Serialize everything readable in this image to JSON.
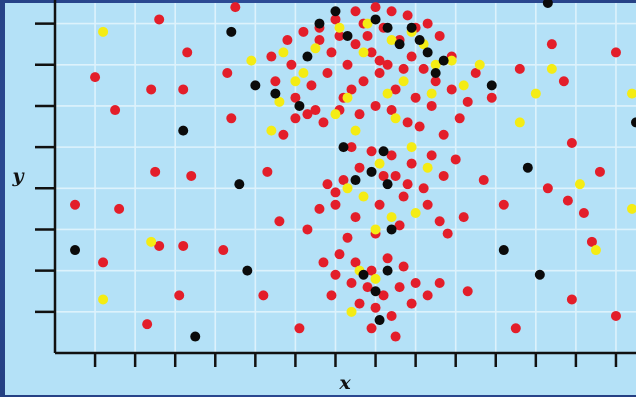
{
  "chart_data": {
    "type": "scatter",
    "title": "",
    "xlabel": "x",
    "ylabel": "y",
    "xlim": [
      0,
      14.5
    ],
    "ylim": [
      0,
      8.5
    ],
    "grid": true,
    "legend": "none",
    "colors": {
      "red": "#e31e2a",
      "yellow": "#f4ec14",
      "black": "#0b0b0b",
      "plot_background": "#b4e1f7",
      "grid": "#ddf2fc",
      "axis": "#111111"
    },
    "series": [
      {
        "values": [
          [
            0.5,
            3.6
          ],
          [
            2.6,
            8.1
          ],
          [
            3.3,
            7.3
          ],
          [
            4.3,
            6.8
          ],
          [
            4.5,
            8.4
          ],
          [
            1.0,
            6.7
          ],
          [
            1.5,
            5.9
          ],
          [
            2.4,
            6.4
          ],
          [
            3.2,
            6.4
          ],
          [
            2.5,
            4.4
          ],
          [
            3.4,
            4.3
          ],
          [
            4.4,
            5.7
          ],
          [
            1.6,
            3.5
          ],
          [
            2.6,
            2.6
          ],
          [
            1.2,
            2.2
          ],
          [
            3.2,
            2.6
          ],
          [
            4.2,
            2.5
          ],
          [
            3.1,
            1.4
          ],
          [
            2.3,
            0.7
          ],
          [
            5.2,
            1.4
          ],
          [
            5.3,
            4.4
          ],
          [
            5.6,
            3.2
          ],
          [
            6.3,
            3.0
          ],
          [
            6.6,
            3.5
          ],
          [
            7.0,
            3.6
          ],
          [
            5.5,
            6.6
          ],
          [
            5.9,
            7.0
          ],
          [
            6.4,
            6.5
          ],
          [
            6.8,
            6.8
          ],
          [
            7.2,
            6.2
          ],
          [
            5.7,
            5.3
          ],
          [
            6.0,
            5.7
          ],
          [
            6.3,
            5.8
          ],
          [
            6.7,
            5.6
          ],
          [
            7.1,
            5.9
          ],
          [
            5.8,
            7.6
          ],
          [
            6.2,
            7.8
          ],
          [
            6.6,
            7.9
          ],
          [
            7.1,
            7.7
          ],
          [
            7.5,
            7.5
          ],
          [
            7.8,
            7.7
          ],
          [
            8.2,
            7.9
          ],
          [
            8.6,
            7.6
          ],
          [
            8.9,
            7.2
          ],
          [
            9.2,
            6.9
          ],
          [
            9.5,
            6.6
          ],
          [
            9.0,
            6.2
          ],
          [
            8.5,
            6.4
          ],
          [
            8.1,
            6.8
          ],
          [
            7.7,
            6.6
          ],
          [
            6.9,
            7.3
          ],
          [
            7.3,
            7.0
          ],
          [
            7.9,
            7.3
          ],
          [
            8.3,
            7.0
          ],
          [
            8.7,
            6.9
          ],
          [
            9.4,
            6.0
          ],
          [
            9.9,
            6.4
          ],
          [
            10.3,
            6.1
          ],
          [
            10.1,
            5.7
          ],
          [
            9.7,
            5.3
          ],
          [
            6.0,
            6.2
          ],
          [
            6.5,
            5.9
          ],
          [
            7.4,
            6.4
          ],
          [
            7.6,
            5.8
          ],
          [
            8.0,
            6.0
          ],
          [
            8.4,
            5.9
          ],
          [
            8.8,
            5.6
          ],
          [
            9.1,
            5.5
          ],
          [
            7.0,
            8.1
          ],
          [
            7.5,
            8.3
          ],
          [
            8.0,
            8.4
          ],
          [
            8.4,
            8.3
          ],
          [
            8.8,
            8.2
          ],
          [
            9.3,
            8.0
          ],
          [
            9.6,
            7.7
          ],
          [
            9.9,
            7.2
          ],
          [
            10.5,
            6.8
          ],
          [
            10.9,
            6.2
          ],
          [
            11.6,
            6.9
          ],
          [
            12.4,
            7.5
          ],
          [
            12.7,
            6.6
          ],
          [
            12.9,
            5.1
          ],
          [
            12.3,
            4.0
          ],
          [
            13.6,
            4.4
          ],
          [
            14.0,
            7.3
          ],
          [
            13.4,
            2.7
          ],
          [
            12.8,
            3.7
          ],
          [
            11.2,
            3.6
          ],
          [
            10.7,
            4.2
          ],
          [
            10.0,
            4.7
          ],
          [
            7.4,
            5.0
          ],
          [
            7.9,
            4.9
          ],
          [
            8.4,
            4.8
          ],
          [
            8.9,
            4.6
          ],
          [
            9.4,
            4.8
          ],
          [
            9.7,
            4.3
          ],
          [
            9.2,
            4.0
          ],
          [
            8.7,
            3.8
          ],
          [
            8.1,
            3.6
          ],
          [
            7.5,
            3.3
          ],
          [
            7.0,
            3.9
          ],
          [
            7.6,
            4.5
          ],
          [
            8.2,
            4.3
          ],
          [
            8.8,
            4.1
          ],
          [
            9.3,
            3.6
          ],
          [
            9.6,
            3.2
          ],
          [
            8.6,
            3.1
          ],
          [
            8.0,
            2.9
          ],
          [
            7.3,
            2.8
          ],
          [
            9.8,
            2.9
          ],
          [
            10.2,
            3.3
          ],
          [
            7.1,
            2.4
          ],
          [
            7.5,
            2.2
          ],
          [
            7.9,
            2.0
          ],
          [
            8.3,
            2.3
          ],
          [
            8.7,
            2.1
          ],
          [
            9.0,
            1.7
          ],
          [
            8.6,
            1.6
          ],
          [
            8.2,
            1.4
          ],
          [
            7.8,
            1.6
          ],
          [
            7.4,
            1.7
          ],
          [
            7.0,
            1.9
          ],
          [
            7.6,
            1.2
          ],
          [
            8.0,
            1.1
          ],
          [
            8.4,
            0.9
          ],
          [
            8.9,
            1.2
          ],
          [
            9.3,
            1.4
          ],
          [
            9.6,
            1.7
          ],
          [
            6.9,
            1.4
          ],
          [
            6.7,
            2.2
          ],
          [
            7.9,
            0.6
          ],
          [
            8.5,
            0.4
          ],
          [
            10.3,
            1.5
          ],
          [
            11.5,
            0.6
          ],
          [
            12.9,
            1.3
          ],
          [
            14.0,
            0.9
          ],
          [
            13.2,
            3.4
          ],
          [
            6.1,
            0.6
          ],
          [
            9.0,
            7.9
          ],
          [
            8.1,
            7.1
          ],
          [
            7.2,
            4.2
          ],
          [
            8.5,
            4.3
          ],
          [
            6.8,
            4.1
          ],
          [
            6.6,
            7.6
          ],
          [
            5.4,
            7.2
          ],
          [
            7.7,
            8.0
          ]
        ]
      },
      {
        "values": [
          [
            1.2,
            7.8
          ],
          [
            4.9,
            7.1
          ],
          [
            5.6,
            6.1
          ],
          [
            6.0,
            6.6
          ],
          [
            6.5,
            7.4
          ],
          [
            7.1,
            7.9
          ],
          [
            7.7,
            7.3
          ],
          [
            8.4,
            7.6
          ],
          [
            9.2,
            7.5
          ],
          [
            9.5,
            7.0
          ],
          [
            9.9,
            7.1
          ],
          [
            10.2,
            6.5
          ],
          [
            9.4,
            6.3
          ],
          [
            7.0,
            5.8
          ],
          [
            7.5,
            5.4
          ],
          [
            8.5,
            5.7
          ],
          [
            8.9,
            5.0
          ],
          [
            9.3,
            4.5
          ],
          [
            5.4,
            5.4
          ],
          [
            8.3,
            6.3
          ],
          [
            7.3,
            4.0
          ],
          [
            8.1,
            4.6
          ],
          [
            8.4,
            3.3
          ],
          [
            8.0,
            3.0
          ],
          [
            7.7,
            3.8
          ],
          [
            9.0,
            3.4
          ],
          [
            7.6,
            2.0
          ],
          [
            8.0,
            1.8
          ],
          [
            7.4,
            1.0
          ],
          [
            12.0,
            6.3
          ],
          [
            13.1,
            4.1
          ],
          [
            14.4,
            6.3
          ],
          [
            14.4,
            3.5
          ],
          [
            13.5,
            2.5
          ],
          [
            11.6,
            5.6
          ],
          [
            12.4,
            6.9
          ],
          [
            2.4,
            2.7
          ],
          [
            1.2,
            1.3
          ],
          [
            5.7,
            7.3
          ],
          [
            8.9,
            7.8
          ],
          [
            10.6,
            7.0
          ],
          [
            7.8,
            8.0
          ],
          [
            8.7,
            6.6
          ],
          [
            7.3,
            6.2
          ],
          [
            6.2,
            6.8
          ]
        ]
      },
      {
        "values": [
          [
            0.5,
            2.5
          ],
          [
            3.2,
            5.4
          ],
          [
            4.4,
            7.8
          ],
          [
            4.6,
            4.1
          ],
          [
            5.5,
            6.3
          ],
          [
            6.1,
            6.0
          ],
          [
            6.3,
            7.2
          ],
          [
            6.6,
            8.0
          ],
          [
            7.3,
            7.7
          ],
          [
            8.0,
            8.1
          ],
          [
            8.3,
            7.9
          ],
          [
            8.6,
            7.5
          ],
          [
            8.9,
            7.9
          ],
          [
            9.1,
            7.6
          ],
          [
            9.7,
            7.1
          ],
          [
            9.3,
            7.3
          ],
          [
            9.5,
            6.8
          ],
          [
            10.9,
            6.5
          ],
          [
            12.3,
            8.5
          ],
          [
            14.5,
            5.6
          ],
          [
            11.8,
            4.5
          ],
          [
            11.2,
            2.5
          ],
          [
            12.1,
            1.9
          ],
          [
            4.8,
            2.0
          ],
          [
            3.5,
            0.4
          ],
          [
            7.5,
            4.2
          ],
          [
            7.9,
            4.4
          ],
          [
            8.2,
            4.9
          ],
          [
            8.3,
            4.1
          ],
          [
            8.4,
            3.0
          ],
          [
            7.7,
            1.9
          ],
          [
            8.0,
            1.5
          ],
          [
            8.3,
            2.0
          ],
          [
            8.1,
            0.8
          ],
          [
            7.2,
            5.0
          ],
          [
            5.0,
            6.5
          ],
          [
            7.0,
            8.3
          ]
        ]
      }
    ]
  }
}
